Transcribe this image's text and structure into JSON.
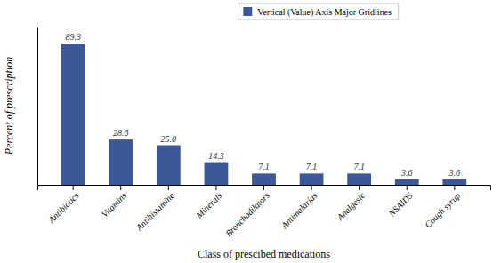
{
  "chart_data": {
    "type": "bar",
    "categories": [
      "Antibiotics",
      "Vitamins",
      "Antihistamine",
      "Minerals",
      "Bronchodilators",
      "Antimalarías",
      "Analgesic",
      "NSAIDS",
      "Cough syrup"
    ],
    "series": [
      {
        "name": "Vertical (Value) Axis Major Gridlines",
        "color": "#3B5998",
        "values": [
          89.3,
          28.6,
          25.0,
          14.3,
          7.1,
          7.1,
          7.1,
          3.6,
          3.6
        ],
        "value_labels": [
          "89.3",
          "28.6",
          "25.0",
          "14.3",
          "7.1",
          "7.1",
          "7.1",
          "3.6",
          "3.6"
        ]
      }
    ],
    "xlabel": "Class of prescibed medications",
    "ylabel": "Percent of prescription",
    "ylim": [
      0,
      100
    ],
    "tick_labels": "x",
    "data_labels": true,
    "grid": false,
    "legend": "top"
  }
}
